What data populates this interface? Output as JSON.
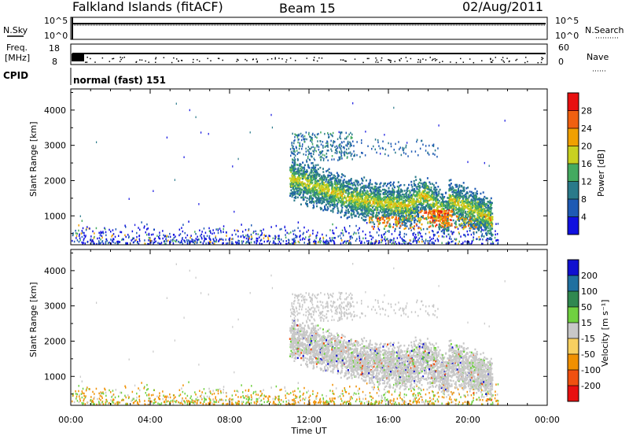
{
  "header": {
    "station": "Falkland Islands (fitACF)",
    "beam": "Beam 15",
    "date": "02/Aug/2011"
  },
  "strip": {
    "nsky_label": "N.Sky",
    "nsearch_label": "N.Search",
    "noise_ticks_left": [
      "10^5",
      "10^0"
    ],
    "noise_ticks_right": [
      "10^5",
      "10^0"
    ],
    "freq_label": "Freq.",
    "freq_unit": "[MHz]",
    "freq_ticks": [
      "18",
      "8"
    ],
    "nave_label": "Nave",
    "nave_ticks": [
      "60",
      "0"
    ],
    "cpid_label": "CPID",
    "cpid_value": "normal (fast) 151"
  },
  "chart_data": [
    {
      "type": "heatmap",
      "panel": "power",
      "ylabel": "Slant Range [km]",
      "xlabel": "",
      "y_ticks": [
        "1000",
        "2000",
        "3000",
        "4000"
      ],
      "y_range": [
        180,
        4600
      ],
      "x_range": [
        0,
        24
      ],
      "colorbar_label": "Power [dB]",
      "colorbar_ticks": [
        "4",
        "8",
        "12",
        "16",
        "20",
        "24",
        "28"
      ],
      "colorbar_colors": [
        "#1010e0",
        "#1e5ab4",
        "#2a7a8a",
        "#44aa60",
        "#c8d020",
        "#f0a000",
        "#f06010",
        "#e81010"
      ],
      "echo_region": {
        "start_ut": 10.8,
        "end_ut": 21.3,
        "range_km": [
          600,
          3400
        ]
      }
    },
    {
      "type": "heatmap",
      "panel": "velocity",
      "ylabel": "Slant Range [km]",
      "xlabel": "Time UT",
      "x_ticks": [
        "00:00",
        "04:00",
        "08:00",
        "12:00",
        "16:00",
        "20:00",
        "00:00"
      ],
      "y_ticks": [
        "1000",
        "2000",
        "3000",
        "4000"
      ],
      "y_range": [
        180,
        4600
      ],
      "x_range": [
        0,
        24
      ],
      "colorbar_label": "Velocity [m s⁻¹]",
      "colorbar_ticks": [
        "200",
        "100",
        "50",
        "15",
        "-15",
        "-50",
        "-100",
        "-200"
      ],
      "colorbar_colors": [
        "#1010d0",
        "#2070a0",
        "#308850",
        "#70d040",
        "#c8c8c8",
        "#f8d060",
        "#f09000",
        "#f05010",
        "#e81010"
      ],
      "echo_region": {
        "start_ut": 10.8,
        "end_ut": 21.3,
        "range_km": [
          600,
          3400
        ]
      }
    }
  ]
}
